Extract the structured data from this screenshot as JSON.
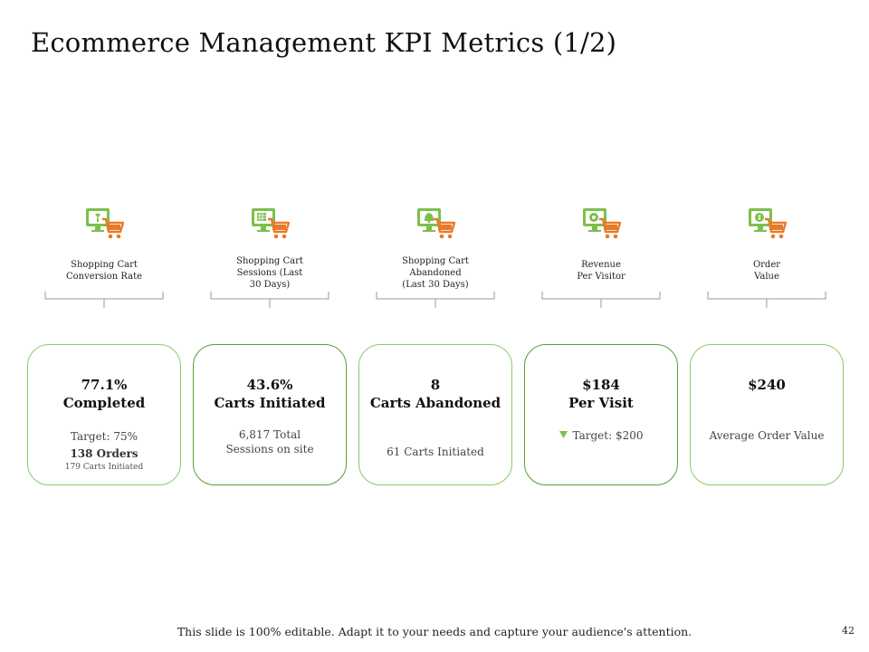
{
  "slide": {
    "title": "Ecommerce Management KPI Metrics (1/2)",
    "footer": "This slide is 100% editable. Adapt it to your needs and capture your audience's attention.",
    "page_number": "42"
  },
  "colors": {
    "accent_green": "#8ccb63",
    "dark_green": "#5a9e35",
    "cart_orange": "#e87a2a"
  },
  "kpis": [
    {
      "icon": "cart-conversion-icon",
      "label_lines": [
        "Shopping Cart",
        "Conversion Rate"
      ],
      "value_lines": [
        "77.1%",
        "Completed"
      ],
      "details": [
        "Target: 75%",
        "138 Orders",
        "179 Carts Initiated"
      ]
    },
    {
      "icon": "cart-sessions-icon",
      "label_lines": [
        "Shopping Cart",
        "Sessions (Last",
        "30 Days)"
      ],
      "value_lines": [
        "43.6%",
        "Carts Initiated"
      ],
      "details": [
        "6,817 Total",
        "Sessions on site"
      ]
    },
    {
      "icon": "cart-abandoned-icon",
      "label_lines": [
        "Shopping Cart",
        "Abandoned",
        "(Last 30 Days)"
      ],
      "value_lines": [
        "8",
        "Carts Abandoned"
      ],
      "details": [
        "61 Carts Initiated"
      ]
    },
    {
      "icon": "revenue-visitor-icon",
      "label_lines": [
        "Revenue",
        "Per Visitor"
      ],
      "value_lines": [
        "$184",
        "Per Visit"
      ],
      "details": [
        "Target: $200"
      ]
    },
    {
      "icon": "order-value-icon",
      "label_lines": [
        "Order",
        "Value"
      ],
      "value_lines": [
        "$240"
      ],
      "details": [
        "Average Order Value"
      ]
    }
  ]
}
